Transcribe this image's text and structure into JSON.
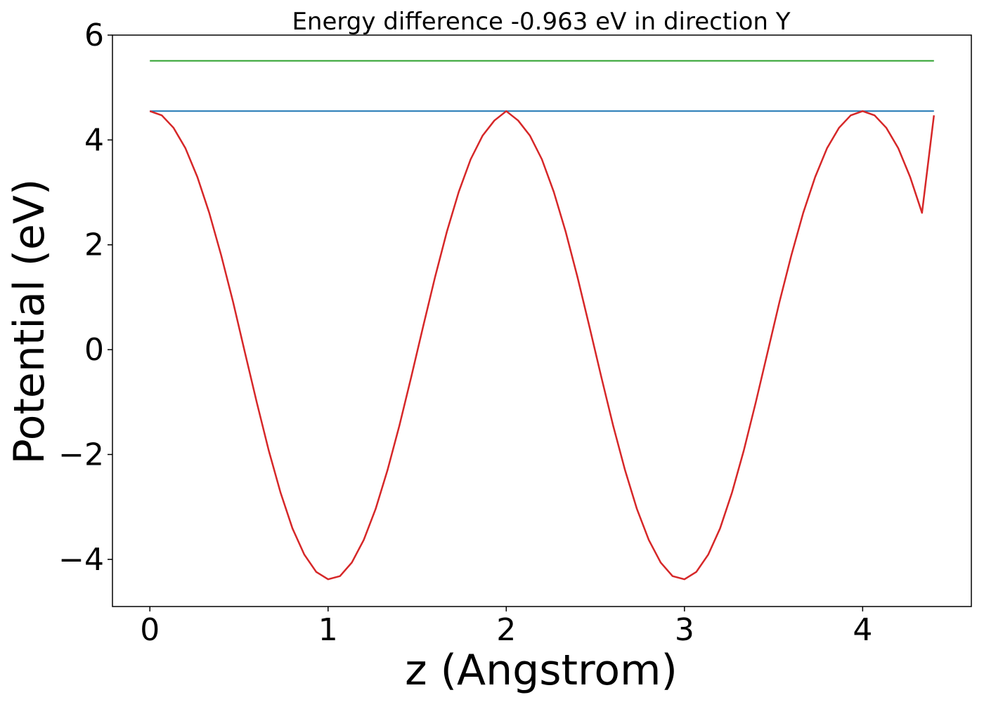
{
  "chart_data": {
    "type": "line",
    "title": "Energy difference -0.963 eV in direction Y",
    "xlabel": "z (Angstrom)",
    "ylabel": "Potential (eV)",
    "xlim": [
      -0.21,
      4.61
    ],
    "ylim": [
      -4.9,
      6.0
    ],
    "xticks": [
      0,
      1,
      2,
      3,
      4
    ],
    "xtick_labels": [
      "0",
      "1",
      "2",
      "3",
      "4"
    ],
    "yticks": [
      -4,
      -2,
      0,
      2,
      4,
      6
    ],
    "ytick_labels": [
      "−4",
      "−2",
      "0",
      "2",
      "4",
      "6"
    ],
    "grid": false,
    "legend": "none",
    "series": [
      {
        "color": "#d62728",
        "x": [
          0.0,
          0.0667,
          0.1333,
          0.2,
          0.2667,
          0.3333,
          0.4,
          0.4667,
          0.5333,
          0.6,
          0.6667,
          0.7333,
          0.8,
          0.8667,
          0.9333,
          1.0,
          1.0667,
          1.1333,
          1.2,
          1.2667,
          1.3333,
          1.4,
          1.4667,
          1.5333,
          1.6,
          1.6667,
          1.7333,
          1.8,
          1.8667,
          1.9333,
          2.0,
          2.0667,
          2.1333,
          2.2,
          2.2667,
          2.3333,
          2.4,
          2.4667,
          2.5333,
          2.6,
          2.6667,
          2.7333,
          2.8,
          2.8667,
          2.9333,
          3.0,
          3.0667,
          3.1333,
          3.2,
          3.2667,
          3.3333,
          3.4,
          3.4667,
          3.5333,
          3.6,
          3.6667,
          3.7333,
          3.8,
          3.8667,
          3.9333,
          4.0,
          4.0667,
          4.1333,
          4.2,
          4.2667,
          4.3333,
          4.4
        ],
        "y": [
          4.55,
          4.47,
          4.23,
          3.84,
          3.29,
          2.61,
          1.8,
          0.91,
          -0.05,
          -1.01,
          -1.92,
          -2.73,
          -3.41,
          -3.91,
          -4.24,
          -4.38,
          -4.32,
          -4.06,
          -3.63,
          -3.04,
          -2.3,
          -1.45,
          -0.52,
          0.44,
          1.38,
          2.25,
          3.01,
          3.63,
          4.08,
          4.37,
          4.55,
          4.37,
          4.08,
          3.63,
          3.01,
          2.25,
          1.38,
          0.44,
          -0.52,
          -1.45,
          -2.3,
          -3.04,
          -3.63,
          -4.06,
          -4.32,
          -4.38,
          -4.24,
          -3.91,
          -3.41,
          -2.73,
          -1.92,
          -1.01,
          -0.05,
          0.91,
          1.8,
          2.61,
          3.29,
          3.84,
          4.23,
          4.47,
          4.55,
          4.47,
          4.23,
          3.84,
          3.29,
          2.61,
          4.47
        ]
      },
      {
        "color": "#1f77b4",
        "x": [
          0.0,
          4.4
        ],
        "y": [
          4.55,
          4.55
        ]
      },
      {
        "color": "#2ca02c",
        "x": [
          0.0,
          4.4
        ],
        "y": [
          5.51,
          5.51
        ]
      }
    ]
  }
}
